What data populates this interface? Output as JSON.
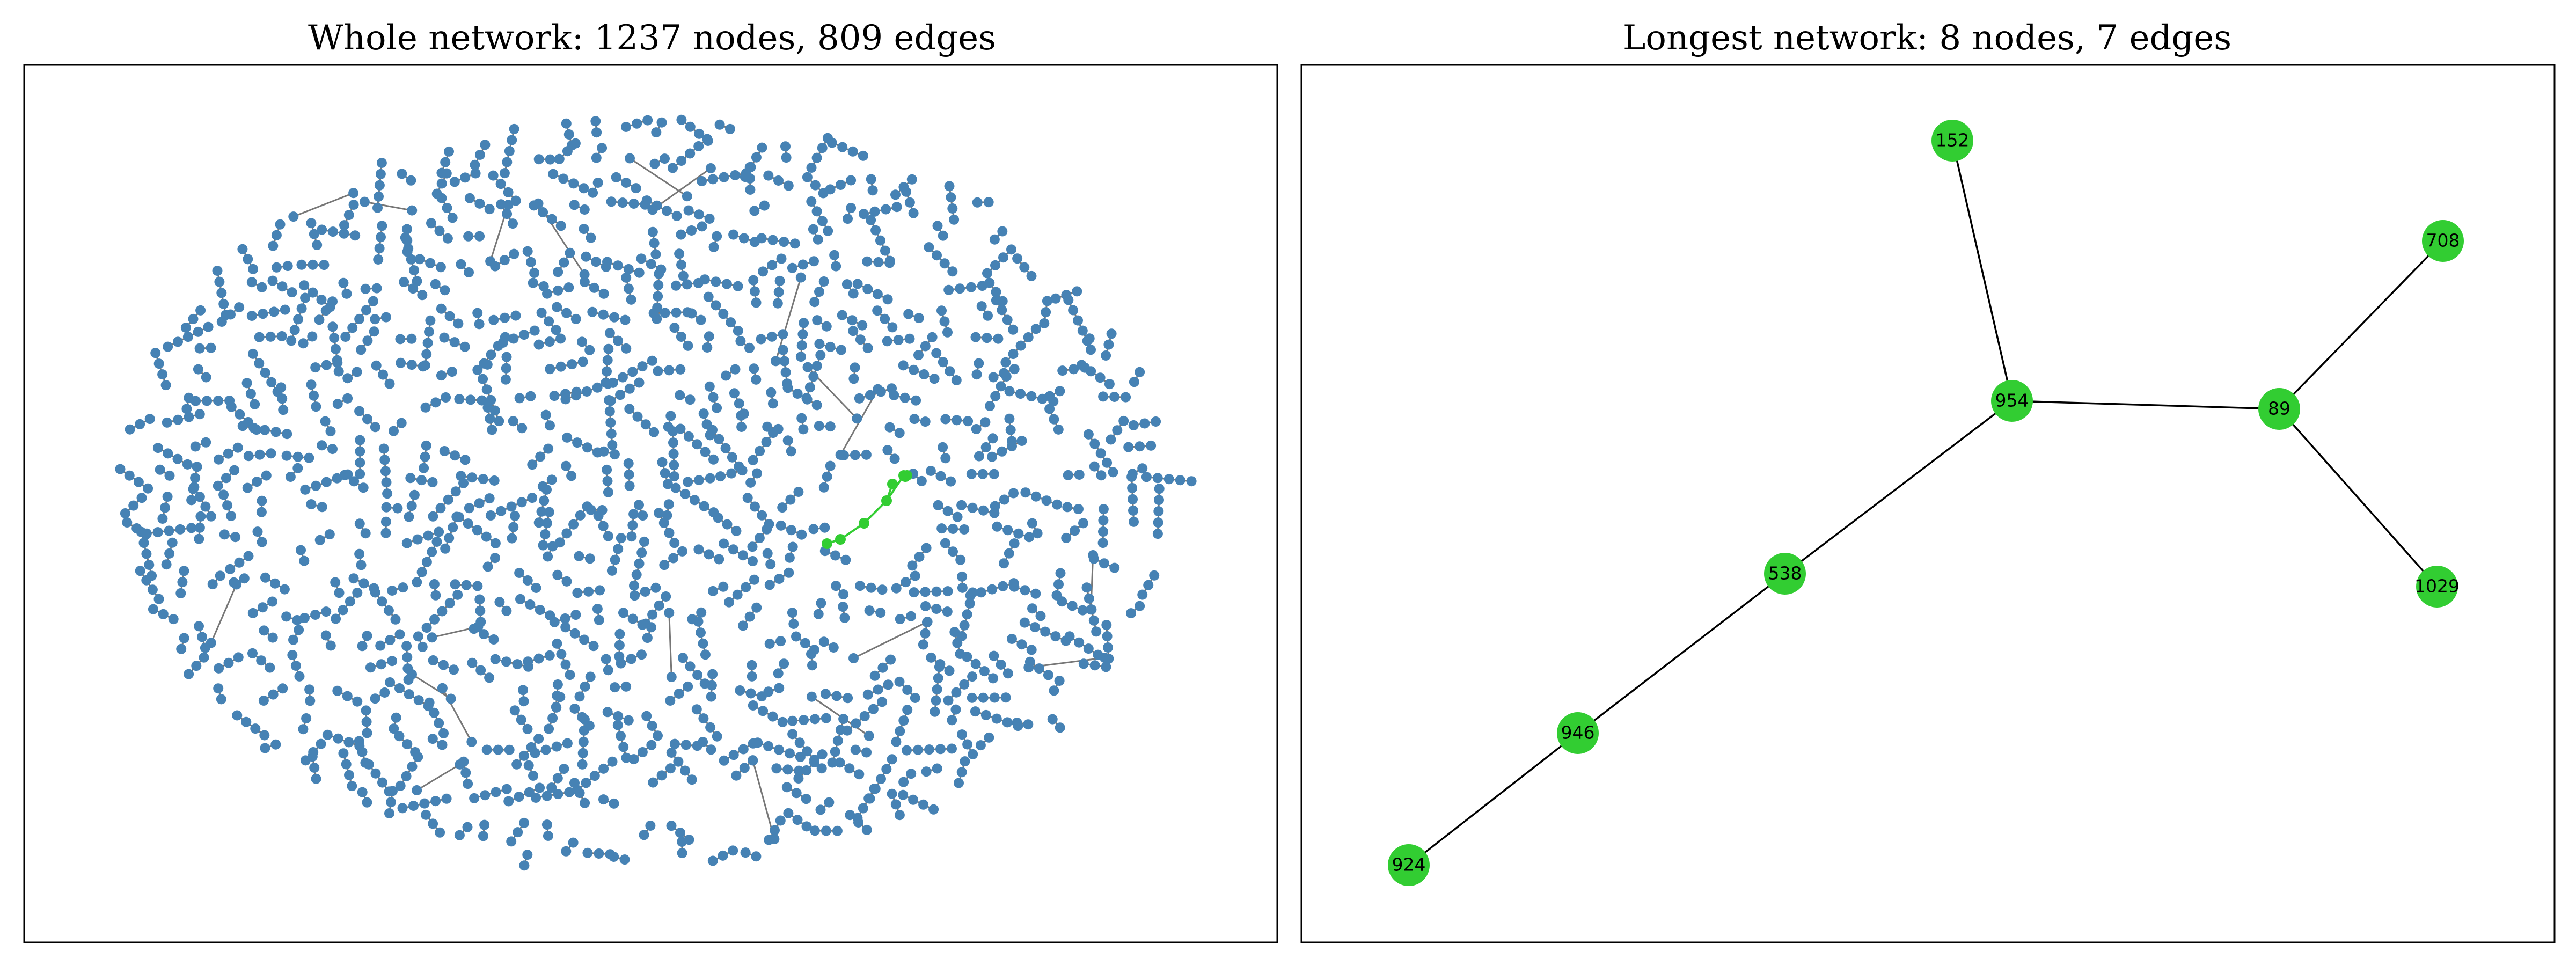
{
  "panels": [
    {
      "title": "Whole network: 1237 nodes, 809 edges",
      "node_count": 1237,
      "edge_count": 809,
      "colors": {
        "node": "#4682b4",
        "edge": "#777777",
        "highlight": "#32cd32"
      }
    },
    {
      "title": "Longest network: 8 nodes, 7 edges",
      "node_count": 8,
      "edge_count": 7,
      "colors": {
        "node": "#32cd32",
        "edge": "#000000"
      },
      "nodes": [
        {
          "id": "152"
        },
        {
          "id": "708"
        },
        {
          "id": "954"
        },
        {
          "id": "89"
        },
        {
          "id": "1029"
        },
        {
          "id": "538"
        },
        {
          "id": "946"
        },
        {
          "id": "924"
        }
      ],
      "edges": [
        [
          "152",
          "954"
        ],
        [
          "954",
          "89"
        ],
        [
          "89",
          "708"
        ],
        [
          "89",
          "1029"
        ],
        [
          "954",
          "538"
        ],
        [
          "538",
          "946"
        ],
        [
          "946",
          "924"
        ]
      ]
    }
  ]
}
